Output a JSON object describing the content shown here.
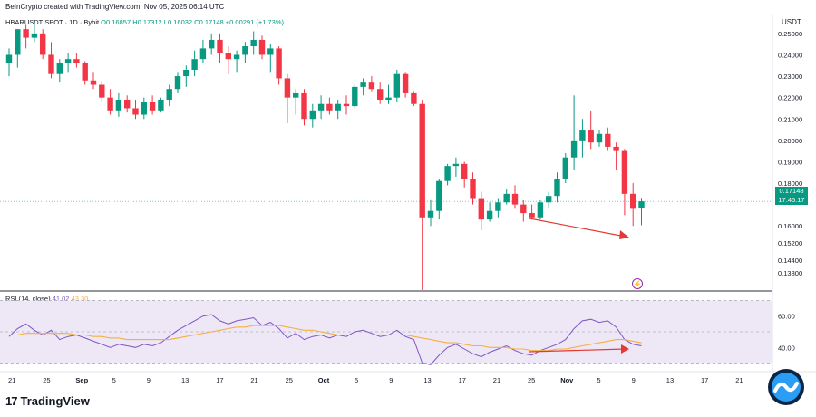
{
  "header": {
    "attribution": "BeInCrypto created with TradingView.com, Nov 05, 2025 06:14 UTC",
    "currency": "USDT",
    "symbol": "HBARUSDT SPOT · 1D · Bybit",
    "ohlc": "O0.16857 H0.17312 L0.16032 C0.17148 +0.00291 (+1.73%)"
  },
  "price_badge": {
    "price": "0.17148",
    "countdown": "17:45:17"
  },
  "rsi_legend": {
    "label": "RSI (14, close)",
    "rsi_value": "41.02",
    "ma_value": "43.30"
  },
  "brand": {
    "logo": "17",
    "name": "TradingView"
  },
  "colors": {
    "up": "#089981",
    "down": "#f23645",
    "rsi": "#7e57c2",
    "rsi_ma": "#f5b041",
    "rsi_band": "#ede7f6",
    "arrow": "#e53935"
  },
  "chart_data": [
    {
      "type": "candlestick",
      "title": "",
      "ylim": [
        0.13,
        0.258
      ],
      "y_ticks": [
        "0.25000",
        "0.24000",
        "0.23000",
        "0.22000",
        "0.21000",
        "0.20000",
        "0.19000",
        "0.18000",
        "0.16000",
        "0.15200",
        "0.14400",
        "0.13800"
      ],
      "x_ticks": [
        "21",
        "25",
        "Sep",
        "5",
        "9",
        "13",
        "17",
        "21",
        "25",
        "Oct",
        "5",
        "9",
        "13",
        "17",
        "21",
        "25",
        "Nov",
        "5",
        "9",
        "13",
        "17",
        "21"
      ],
      "reference_line": 0.17148,
      "candles": [
        {
          "o": 0.236,
          "h": 0.243,
          "l": 0.23,
          "c": 0.24
        },
        {
          "o": 0.24,
          "h": 0.251,
          "l": 0.234,
          "c": 0.252
        },
        {
          "o": 0.252,
          "h": 0.254,
          "l": 0.243,
          "c": 0.248
        },
        {
          "o": 0.248,
          "h": 0.255,
          "l": 0.246,
          "c": 0.25
        },
        {
          "o": 0.25,
          "h": 0.252,
          "l": 0.238,
          "c": 0.24
        },
        {
          "o": 0.24,
          "h": 0.246,
          "l": 0.229,
          "c": 0.231
        },
        {
          "o": 0.231,
          "h": 0.238,
          "l": 0.227,
          "c": 0.236
        },
        {
          "o": 0.236,
          "h": 0.241,
          "l": 0.232,
          "c": 0.238
        },
        {
          "o": 0.238,
          "h": 0.241,
          "l": 0.234,
          "c": 0.236
        },
        {
          "o": 0.236,
          "h": 0.237,
          "l": 0.226,
          "c": 0.228
        },
        {
          "o": 0.228,
          "h": 0.232,
          "l": 0.224,
          "c": 0.226
        },
        {
          "o": 0.226,
          "h": 0.228,
          "l": 0.218,
          "c": 0.22
        },
        {
          "o": 0.22,
          "h": 0.224,
          "l": 0.212,
          "c": 0.214
        },
        {
          "o": 0.214,
          "h": 0.222,
          "l": 0.211,
          "c": 0.219
        },
        {
          "o": 0.219,
          "h": 0.221,
          "l": 0.213,
          "c": 0.215
        },
        {
          "o": 0.215,
          "h": 0.219,
          "l": 0.21,
          "c": 0.212
        },
        {
          "o": 0.212,
          "h": 0.22,
          "l": 0.21,
          "c": 0.218
        },
        {
          "o": 0.218,
          "h": 0.221,
          "l": 0.212,
          "c": 0.214
        },
        {
          "o": 0.214,
          "h": 0.22,
          "l": 0.213,
          "c": 0.219
        },
        {
          "o": 0.219,
          "h": 0.226,
          "l": 0.216,
          "c": 0.224
        },
        {
          "o": 0.224,
          "h": 0.232,
          "l": 0.222,
          "c": 0.23
        },
        {
          "o": 0.23,
          "h": 0.235,
          "l": 0.225,
          "c": 0.233
        },
        {
          "o": 0.233,
          "h": 0.242,
          "l": 0.23,
          "c": 0.238
        },
        {
          "o": 0.238,
          "h": 0.247,
          "l": 0.236,
          "c": 0.243
        },
        {
          "o": 0.243,
          "h": 0.25,
          "l": 0.24,
          "c": 0.247
        },
        {
          "o": 0.247,
          "h": 0.25,
          "l": 0.236,
          "c": 0.241
        },
        {
          "o": 0.241,
          "h": 0.244,
          "l": 0.231,
          "c": 0.238
        },
        {
          "o": 0.238,
          "h": 0.242,
          "l": 0.232,
          "c": 0.24
        },
        {
          "o": 0.24,
          "h": 0.246,
          "l": 0.236,
          "c": 0.244
        },
        {
          "o": 0.244,
          "h": 0.251,
          "l": 0.24,
          "c": 0.247
        },
        {
          "o": 0.247,
          "h": 0.249,
          "l": 0.238,
          "c": 0.24
        },
        {
          "o": 0.24,
          "h": 0.245,
          "l": 0.232,
          "c": 0.243
        },
        {
          "o": 0.243,
          "h": 0.244,
          "l": 0.226,
          "c": 0.229
        },
        {
          "o": 0.229,
          "h": 0.231,
          "l": 0.208,
          "c": 0.22
        },
        {
          "o": 0.22,
          "h": 0.224,
          "l": 0.212,
          "c": 0.222
        },
        {
          "o": 0.222,
          "h": 0.224,
          "l": 0.207,
          "c": 0.21
        },
        {
          "o": 0.21,
          "h": 0.217,
          "l": 0.206,
          "c": 0.214
        },
        {
          "o": 0.214,
          "h": 0.221,
          "l": 0.21,
          "c": 0.217
        },
        {
          "o": 0.217,
          "h": 0.22,
          "l": 0.212,
          "c": 0.214
        },
        {
          "o": 0.214,
          "h": 0.219,
          "l": 0.21,
          "c": 0.217
        },
        {
          "o": 0.217,
          "h": 0.221,
          "l": 0.212,
          "c": 0.216
        },
        {
          "o": 0.216,
          "h": 0.226,
          "l": 0.215,
          "c": 0.225
        },
        {
          "o": 0.225,
          "h": 0.229,
          "l": 0.221,
          "c": 0.227
        },
        {
          "o": 0.227,
          "h": 0.23,
          "l": 0.223,
          "c": 0.224
        },
        {
          "o": 0.224,
          "h": 0.227,
          "l": 0.217,
          "c": 0.219
        },
        {
          "o": 0.219,
          "h": 0.226,
          "l": 0.217,
          "c": 0.22
        },
        {
          "o": 0.22,
          "h": 0.233,
          "l": 0.218,
          "c": 0.231
        },
        {
          "o": 0.231,
          "h": 0.232,
          "l": 0.22,
          "c": 0.222
        },
        {
          "o": 0.222,
          "h": 0.223,
          "l": 0.216,
          "c": 0.217
        },
        {
          "o": 0.217,
          "h": 0.219,
          "l": 0.13,
          "c": 0.164
        },
        {
          "o": 0.164,
          "h": 0.172,
          "l": 0.16,
          "c": 0.167
        },
        {
          "o": 0.167,
          "h": 0.182,
          "l": 0.163,
          "c": 0.181
        },
        {
          "o": 0.181,
          "h": 0.189,
          "l": 0.179,
          "c": 0.188
        },
        {
          "o": 0.188,
          "h": 0.192,
          "l": 0.183,
          "c": 0.189
        },
        {
          "o": 0.189,
          "h": 0.19,
          "l": 0.178,
          "c": 0.182
        },
        {
          "o": 0.182,
          "h": 0.185,
          "l": 0.17,
          "c": 0.173
        },
        {
          "o": 0.173,
          "h": 0.176,
          "l": 0.158,
          "c": 0.163
        },
        {
          "o": 0.163,
          "h": 0.171,
          "l": 0.162,
          "c": 0.167
        },
        {
          "o": 0.167,
          "h": 0.173,
          "l": 0.164,
          "c": 0.171
        },
        {
          "o": 0.171,
          "h": 0.177,
          "l": 0.17,
          "c": 0.175
        },
        {
          "o": 0.175,
          "h": 0.179,
          "l": 0.168,
          "c": 0.17
        },
        {
          "o": 0.17,
          "h": 0.172,
          "l": 0.162,
          "c": 0.166
        },
        {
          "o": 0.166,
          "h": 0.17,
          "l": 0.163,
          "c": 0.164
        },
        {
          "o": 0.164,
          "h": 0.172,
          "l": 0.163,
          "c": 0.171
        },
        {
          "o": 0.171,
          "h": 0.176,
          "l": 0.168,
          "c": 0.174
        },
        {
          "o": 0.174,
          "h": 0.185,
          "l": 0.171,
          "c": 0.182
        },
        {
          "o": 0.182,
          "h": 0.194,
          "l": 0.18,
          "c": 0.192
        },
        {
          "o": 0.192,
          "h": 0.221,
          "l": 0.186,
          "c": 0.2
        },
        {
          "o": 0.2,
          "h": 0.21,
          "l": 0.192,
          "c": 0.205
        },
        {
          "o": 0.205,
          "h": 0.214,
          "l": 0.196,
          "c": 0.199
        },
        {
          "o": 0.199,
          "h": 0.205,
          "l": 0.197,
          "c": 0.203
        },
        {
          "o": 0.203,
          "h": 0.206,
          "l": 0.195,
          "c": 0.197
        },
        {
          "o": 0.197,
          "h": 0.199,
          "l": 0.186,
          "c": 0.195
        },
        {
          "o": 0.195,
          "h": 0.196,
          "l": 0.165,
          "c": 0.175
        },
        {
          "o": 0.175,
          "h": 0.18,
          "l": 0.16,
          "c": 0.168
        },
        {
          "o": 0.16857,
          "h": 0.17312,
          "l": 0.16032,
          "c": 0.17148
        }
      ]
    },
    {
      "type": "line",
      "title": "RSI (14, close)",
      "ylim": [
        28,
        72
      ],
      "y_ticks": [
        "60.00",
        "40.00"
      ],
      "bands": [
        70,
        30
      ],
      "midline": 50,
      "series": [
        {
          "name": "RSI",
          "values": [
            47,
            52,
            55,
            51,
            48,
            51,
            45,
            47,
            48,
            46,
            44,
            42,
            40,
            42,
            41,
            40,
            42,
            41,
            43,
            47,
            51,
            54,
            57,
            60,
            61,
            57,
            55,
            57,
            58,
            59,
            54,
            56,
            52,
            46,
            49,
            45,
            47,
            48,
            46,
            48,
            47,
            50,
            51,
            49,
            47,
            48,
            51,
            47,
            45,
            30,
            29,
            35,
            40,
            42,
            39,
            36,
            34,
            37,
            39,
            41,
            38,
            36,
            35,
            38,
            40,
            42,
            45,
            52,
            57,
            58,
            56,
            57,
            53,
            45,
            42,
            41
          ]
        },
        {
          "name": "RSI-based MA",
          "values": [
            48,
            48,
            49,
            49,
            49,
            49,
            49,
            49,
            48,
            48,
            47,
            47,
            46,
            46,
            45,
            45,
            45,
            45,
            45,
            45,
            46,
            47,
            48,
            49,
            50,
            51,
            52,
            53,
            53,
            54,
            54,
            54,
            54,
            53,
            52,
            51,
            51,
            50,
            49,
            48,
            48,
            48,
            48,
            48,
            48,
            48,
            48,
            48,
            47,
            46,
            45,
            44,
            43,
            43,
            42,
            41,
            41,
            40,
            40,
            40,
            39,
            39,
            38,
            38,
            38,
            39,
            39,
            40,
            41,
            42,
            43,
            44,
            45,
            45,
            44,
            43
          ]
        }
      ]
    }
  ],
  "annotations": [
    "support-trend-arrow",
    "rsi-divergence-arrow"
  ]
}
